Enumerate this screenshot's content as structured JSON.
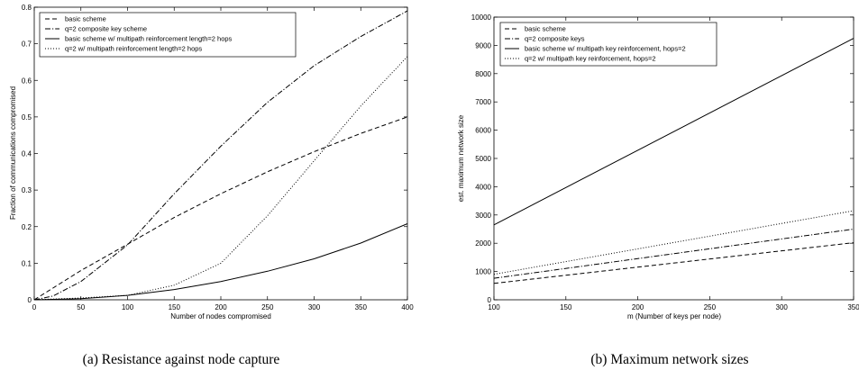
{
  "chart_data": [
    {
      "type": "line",
      "xlabel": "Number of nodes compromised",
      "ylabel": "Fraction of communications compromised",
      "xlim": [
        0,
        400
      ],
      "ylim": [
        0,
        0.8
      ],
      "xticks": [
        "0",
        "50",
        "100",
        "150",
        "200",
        "250",
        "300",
        "350",
        "400"
      ],
      "yticks": [
        "0",
        "0.1",
        "0.2",
        "0.3",
        "0.4",
        "0.5",
        "0.6",
        "0.7",
        "0.8"
      ],
      "grid": false,
      "legend_position": "top-left",
      "caption": "(a) Resistance against node capture",
      "series": [
        {
          "name": "basic scheme",
          "style": "dashed",
          "x": [
            0,
            50,
            100,
            150,
            200,
            250,
            300,
            350,
            400
          ],
          "y": [
            0,
            0.08,
            0.152,
            0.225,
            0.29,
            0.35,
            0.405,
            0.455,
            0.5
          ]
        },
        {
          "name": "q=2 composite key scheme",
          "style": "dashdot",
          "x": [
            0,
            20,
            50,
            100,
            150,
            200,
            250,
            300,
            350,
            400
          ],
          "y": [
            0,
            0.01,
            0.05,
            0.15,
            0.29,
            0.42,
            0.54,
            0.64,
            0.72,
            0.79
          ]
        },
        {
          "name": "basic scheme w/ multipath reinforcement length=2 hops",
          "style": "solid",
          "x": [
            0,
            50,
            100,
            150,
            200,
            250,
            300,
            350,
            400
          ],
          "y": [
            0,
            0.003,
            0.012,
            0.028,
            0.05,
            0.078,
            0.112,
            0.155,
            0.208
          ]
        },
        {
          "name": "q=2 w/ multipath reinforcement length=2 hops",
          "style": "dotted",
          "x": [
            0,
            50,
            100,
            150,
            200,
            250,
            300,
            350,
            400
          ],
          "y": [
            0,
            0.005,
            0.012,
            0.04,
            0.1,
            0.23,
            0.38,
            0.53,
            0.665
          ]
        }
      ]
    },
    {
      "type": "line",
      "xlabel": "m (Number of keys per node)",
      "ylabel": "est. maximum network size",
      "xlim": [
        100,
        350
      ],
      "ylim": [
        0,
        10000
      ],
      "xticks": [
        "100",
        "150",
        "200",
        "250",
        "300",
        "350"
      ],
      "yticks": [
        "0",
        "1000",
        "2000",
        "3000",
        "4000",
        "5000",
        "6000",
        "7000",
        "8000",
        "9000",
        "10000"
      ],
      "grid": false,
      "legend_position": "top-left",
      "caption": "(b) Maximum network sizes",
      "series": [
        {
          "name": "basic scheme",
          "style": "dashed",
          "x": [
            100,
            350
          ],
          "y": [
            580,
            2020
          ]
        },
        {
          "name": "q=2 composite keys",
          "style": "dashdot",
          "x": [
            100,
            350
          ],
          "y": [
            760,
            2500
          ]
        },
        {
          "name": "basic scheme w/ multipath key reinforcement, hops=2",
          "style": "solid",
          "x": [
            100,
            350
          ],
          "y": [
            2650,
            9250
          ]
        },
        {
          "name": "q=2 w/ multipath key reinforcement, hops=2",
          "style": "dotted",
          "x": [
            100,
            350
          ],
          "y": [
            900,
            3150
          ]
        }
      ]
    }
  ]
}
